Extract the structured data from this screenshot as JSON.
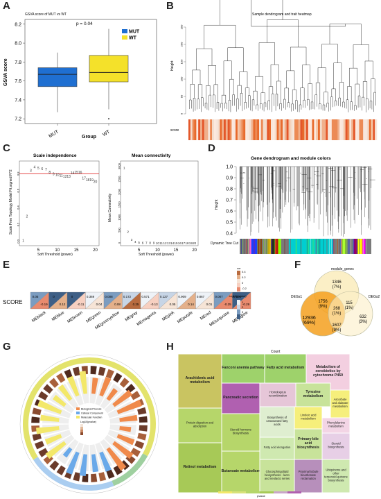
{
  "panels": [
    "A",
    "B",
    "C",
    "D",
    "E",
    "F",
    "G",
    "H"
  ],
  "panelA": {
    "chart_data": {
      "type": "box",
      "title": "GSVA score of MUT vs WT",
      "annotation": "p = 0.04",
      "xlabel": "Group",
      "ylabel": "GSVA score",
      "categories": [
        "MUT",
        "WT"
      ],
      "ylim": [
        7.15,
        8.25
      ],
      "yticks": [
        "7.2",
        "7.4",
        "7.6",
        "7.8",
        "8.0",
        "8.2"
      ],
      "boxes": [
        {
          "name": "MUT",
          "min": 7.27,
          "q1": 7.54,
          "median": 7.67,
          "q3": 7.74,
          "max": 7.9,
          "color": "#1f6fd1"
        },
        {
          "name": "WT",
          "min": 7.3,
          "q1": 7.59,
          "median": 7.69,
          "q3": 7.87,
          "max": 8.15,
          "outlier": 7.2,
          "color": "#f4e12a"
        }
      ],
      "legend": [
        {
          "name": "MUT",
          "color": "#1f6fd1"
        },
        {
          "name": "WT",
          "color": "#f4e12a"
        }
      ]
    }
  },
  "panelB": {
    "title": "Sample dendrogram and trait heatmap",
    "ylabel": "Height",
    "yticks": [
      "0",
      "50",
      "100",
      "150",
      "200",
      "250"
    ],
    "trait_label": "score"
  },
  "panelC": {
    "left": {
      "chart_data": {
        "type": "scatter",
        "title": "Scale independence",
        "xlabel": "Soft Threshold (power)",
        "ylabel": "Scale Free Topology Model Fit,signed R^2",
        "xticks": [
          "5",
          "10",
          "15",
          "20"
        ],
        "yticks": [
          "0.0",
          "0.2",
          "0.4",
          "0.6",
          "0.8"
        ],
        "points": [
          [
            1,
            0.01
          ],
          [
            2,
            0.3
          ],
          [
            3,
            0.84
          ],
          [
            4,
            0.88
          ],
          [
            5,
            0.87
          ],
          [
            6,
            0.86
          ],
          [
            7,
            0.85
          ],
          [
            8,
            0.82
          ],
          [
            9,
            0.8
          ],
          [
            10,
            0.79
          ],
          [
            11,
            0.78
          ],
          [
            12,
            0.77
          ],
          [
            13,
            0.77
          ],
          [
            14,
            0.81
          ],
          [
            15,
            0.82
          ],
          [
            16,
            0.82
          ],
          [
            17,
            0.75
          ],
          [
            18,
            0.73
          ],
          [
            19,
            0.73
          ],
          [
            20,
            0.71
          ]
        ],
        "hline": 0.8
      }
    },
    "right": {
      "chart_data": {
        "type": "scatter",
        "title": "Mean connectivity",
        "xlabel": "Soft Threshold (power)",
        "ylabel": "Mean Connectivity",
        "xticks": [
          "5",
          "10",
          "15",
          "20"
        ],
        "yticks": [
          "0",
          "500",
          "1000",
          "1500",
          "2000",
          "2500",
          "3000"
        ],
        "points": [
          [
            1,
            2950
          ],
          [
            2,
            450
          ],
          [
            3,
            140
          ],
          [
            4,
            60
          ],
          [
            5,
            30
          ],
          [
            6,
            18
          ],
          [
            7,
            12
          ],
          [
            8,
            9
          ],
          [
            9,
            7
          ],
          [
            10,
            5
          ],
          [
            11,
            4
          ],
          [
            12,
            3
          ],
          [
            13,
            3
          ],
          [
            14,
            2
          ],
          [
            15,
            2
          ],
          [
            16,
            2
          ],
          [
            17,
            1
          ],
          [
            18,
            1
          ],
          [
            19,
            1
          ],
          [
            20,
            1
          ]
        ]
      }
    }
  },
  "panelD": {
    "title": "Gene dendrogram and module colors",
    "ylabel": "Height",
    "yticks": [
      "0.4",
      "0.5",
      "0.6",
      "0.7",
      "0.8",
      "0.9",
      "1.0"
    ],
    "module_label": "Dynamic Tree Cut"
  },
  "panelE": {
    "row_label": "SCORE",
    "chart_data": {
      "type": "heatmap",
      "modules": [
        "MEblack",
        "MEblue",
        "MEbrown",
        "MEgreen",
        "MEgreenyellow",
        "MEgrey",
        "MEmagenta",
        "MEpink",
        "MEpurple",
        "MEred",
        "MEturquoise",
        "MEyellow"
      ],
      "cor": [
        "-0.19",
        "0.12",
        "-0.11",
        "0.04",
        "0.08",
        "0.25",
        "-0.13",
        "0.05",
        "0.14",
        "0.01",
        "-0.25",
        "-0.29"
      ],
      "pvalue": [
        "0.05",
        "0",
        "0",
        "0.369",
        "0.008",
        "0.172",
        "0.571",
        "0.127",
        "0.909",
        "0.867",
        "0.007",
        "0.001"
      ],
      "legend_ticks": [
        "0.4",
        "0.2",
        "0",
        "-0.2"
      ],
      "legend2_title": "-log10(pvalue)",
      "legend2_ticks": [
        "1",
        "2",
        "3",
        "4"
      ],
      "legend_title": "cor"
    }
  },
  "panelF": {
    "chart_data": {
      "type": "venn",
      "sets": [
        "module_genes",
        "DEGs1",
        "DEGs2"
      ],
      "regions": [
        {
          "count": "1346",
          "pct": "(7%)"
        },
        {
          "count": "12936",
          "pct": "(69%)"
        },
        {
          "count": "632",
          "pct": "(3%)"
        },
        {
          "count": "1756",
          "pct": "(9%)"
        },
        {
          "count": "115",
          "pct": "(1%)"
        },
        {
          "count": "268",
          "pct": "(1%)"
        },
        {
          "count": "1607",
          "pct": "(9%)"
        }
      ],
      "set_labels": [
        "module_genes",
        "DEGs1",
        "DEGs2"
      ]
    }
  },
  "panelG": {
    "legend": [
      {
        "name": "Biological Process",
        "color": "#f08a4b"
      },
      {
        "name": "Cellular Component",
        "color": "#6aa9e9"
      },
      {
        "name": "Molecular Function",
        "color": "#f3e86a"
      }
    ],
    "legend_title": "Log10(pvalue)"
  },
  "panelH": {
    "title": "Count",
    "cells": [
      {
        "label": "Arachidonic acid metabolism",
        "color": "#c9c461",
        "bold": true
      },
      {
        "label": "Fanconi anemia pathway",
        "color": "#9ed26b",
        "bold": true
      },
      {
        "label": "Fatty acid metabolism",
        "color": "#9ed26b",
        "bold": true
      },
      {
        "label": "Metabolism of xenobiotics by cytochrome P450",
        "color": "#f3cfe0",
        "bold": true
      },
      {
        "label": "Pancreatic secretion",
        "color": "#b060b0",
        "bold": true
      },
      {
        "label": "Homologous recombination",
        "color": "#e6c6d8"
      },
      {
        "label": "Tyrosine metabolism",
        "color": "#c8e39a",
        "bold": true
      },
      {
        "label": "Ascorbate and aldarate metabolism",
        "color": "#f6ef7b"
      },
      {
        "label": "Protein digestion and absorption",
        "color": "#b6d66a"
      },
      {
        "label": "Steroid hormone biosynthesis",
        "color": "#b6d66a"
      },
      {
        "label": "Biosynthesis of unsaturated fatty acids",
        "color": "#dfeed0"
      },
      {
        "label": "Linoleic acid metabolism",
        "color": "#f6ef7b"
      },
      {
        "label": "Phenylalanine metabolism",
        "color": "#f3d5e5"
      },
      {
        "label": "Retinol metabolism",
        "color": "#a7c957",
        "bold": true
      },
      {
        "label": "Fatty acid elongation",
        "color": "#cfe9b0"
      },
      {
        "label": "Primary bile acid biosynthesis",
        "color": "#c8e39a",
        "bold": true
      },
      {
        "label": "Steroid biosynthesis",
        "color": "#e7cfe6"
      },
      {
        "label": "Butanoate metabolism",
        "color": "#b6d66a",
        "bold": true
      },
      {
        "label": "Glycosphingolipid biosynthesis - lacto and neolacto series",
        "color": "#c8e39a"
      },
      {
        "label": "Proximal tubule bicarbonate reclamation",
        "color": "#b78fbb"
      },
      {
        "label": "Ubiquinone and other terpenoid-quinone biosynthesis",
        "color": "#cfe9b0"
      }
    ],
    "colorbar_label": "pvalue"
  }
}
